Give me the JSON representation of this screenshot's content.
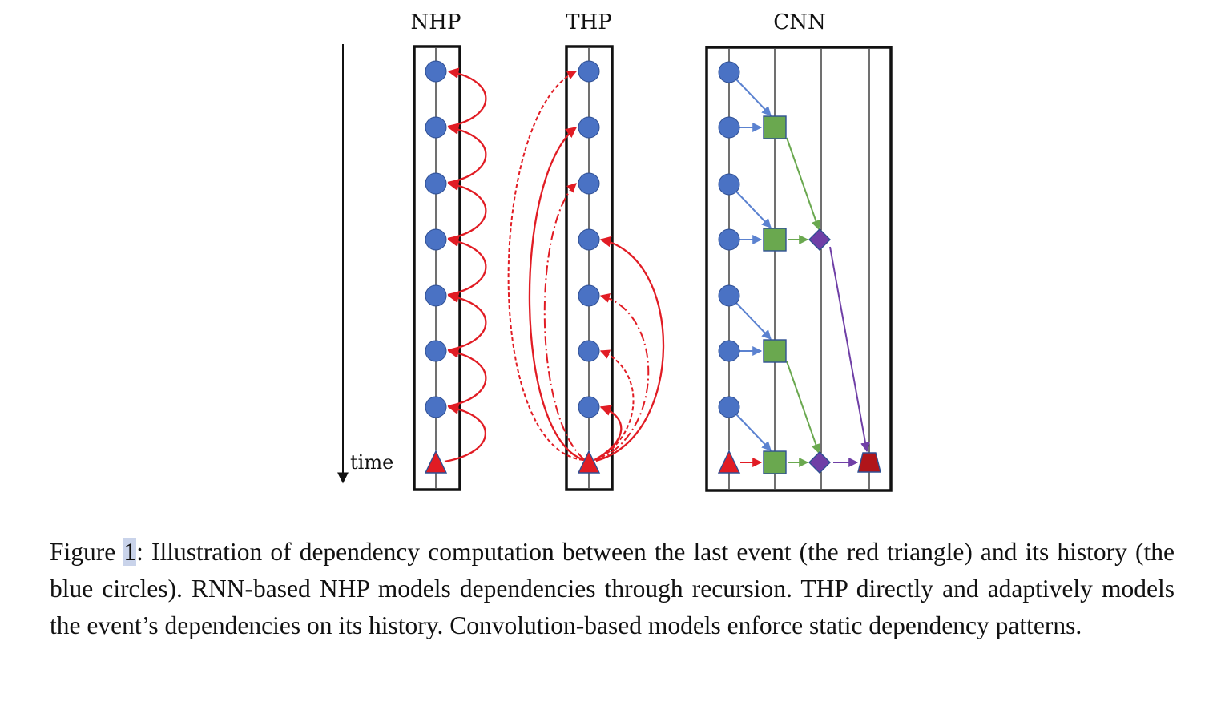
{
  "figure": {
    "panels": [
      {
        "id": "nhp",
        "title": "NHP"
      },
      {
        "id": "thp",
        "title": "THP"
      },
      {
        "id": "cnn",
        "title": "CNN"
      }
    ],
    "time_axis_label": "time",
    "colors": {
      "history_event": "#4a72c4",
      "last_event": "#e11c24",
      "dependency_arrow": "#e11c24",
      "cnn_input_arrow": "#5b82d0",
      "conv_layer_1": "#6aa84f",
      "conv_layer_2": "#6f3fa6",
      "conv_output": "#b0151a"
    },
    "legend_semantics": {
      "circle": "history event",
      "triangle": "last event",
      "square": "convolution layer 1",
      "diamond": "convolution layer 2"
    }
  },
  "caption": {
    "label": "Figure ",
    "number": "1",
    "text": ": Illustration of dependency computation between the last event (the red triangle) and its history (the blue circles). RNN-based NHP models dependencies through recursion. THP directly and adaptively models the event’s dependencies on its history. Convolution-based models enforce static dependency patterns."
  }
}
